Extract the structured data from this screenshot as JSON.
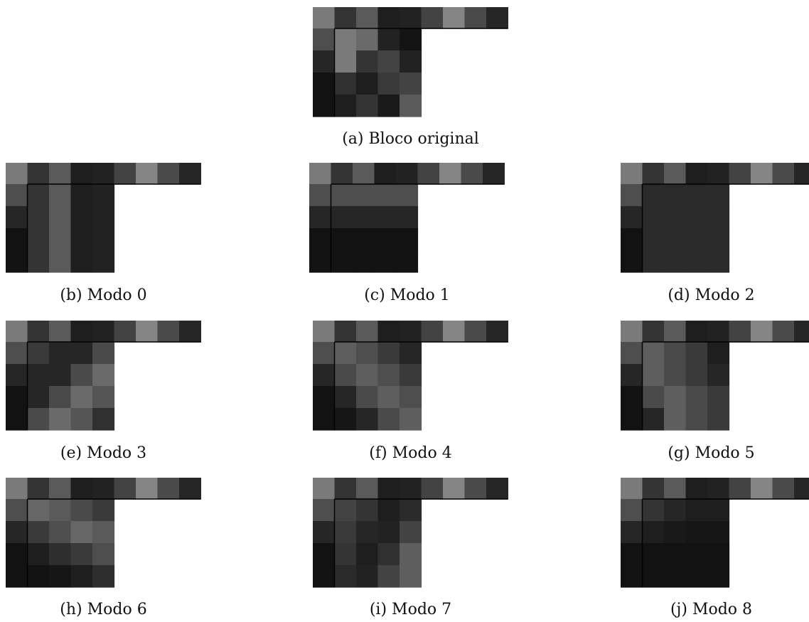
{
  "border_color": "#000000",
  "panels": [
    {
      "id": "a",
      "label": "(a)",
      "caption": "Bloco original",
      "top": [
        "#7a7a7a",
        "#343434",
        "#5a5a5a",
        "#1e1e1e",
        "#222222",
        "#434343",
        "#858585",
        "#4a4a4a",
        "#262626"
      ],
      "left": [
        "#4e4e4e",
        "#262626",
        "#121212",
        "#121212"
      ],
      "block": [
        [
          "#7a7a7a",
          "#6a6a6a",
          "#222222",
          "#141414"
        ],
        [
          "#7a7a7a",
          "#343434",
          "#434343",
          "#222222"
        ],
        [
          "#303030",
          "#1e1e1e",
          "#3a3a3a",
          "#434343"
        ],
        [
          "#1e1e1e",
          "#343434",
          "#1a1a1a",
          "#5a5a5a"
        ]
      ]
    },
    {
      "id": "b",
      "label": "(b)",
      "caption": "Modo 0",
      "top": [
        "#7a7a7a",
        "#343434",
        "#5a5a5a",
        "#1e1e1e",
        "#222222",
        "#434343",
        "#858585",
        "#4a4a4a",
        "#262626"
      ],
      "left": [
        "#4e4e4e",
        "#262626",
        "#121212",
        "#121212"
      ],
      "block": [
        [
          "#343434",
          "#5a5a5a",
          "#1e1e1e",
          "#222222"
        ],
        [
          "#343434",
          "#5a5a5a",
          "#1e1e1e",
          "#222222"
        ],
        [
          "#343434",
          "#5a5a5a",
          "#1e1e1e",
          "#222222"
        ],
        [
          "#343434",
          "#5a5a5a",
          "#1e1e1e",
          "#222222"
        ]
      ]
    },
    {
      "id": "c",
      "label": "(c)",
      "caption": "Modo 1",
      "top": [
        "#7a7a7a",
        "#343434",
        "#5a5a5a",
        "#1e1e1e",
        "#222222",
        "#434343",
        "#858585",
        "#4a4a4a",
        "#262626"
      ],
      "left": [
        "#4e4e4e",
        "#262626",
        "#121212",
        "#121212"
      ],
      "block": [
        [
          "#4e4e4e",
          "#4e4e4e",
          "#4e4e4e",
          "#4e4e4e"
        ],
        [
          "#262626",
          "#262626",
          "#262626",
          "#262626"
        ],
        [
          "#121212",
          "#121212",
          "#121212",
          "#121212"
        ],
        [
          "#121212",
          "#121212",
          "#121212",
          "#121212"
        ]
      ]
    },
    {
      "id": "d",
      "label": "(d)",
      "caption": "Modo 2",
      "top": [
        "#7a7a7a",
        "#343434",
        "#5a5a5a",
        "#1e1e1e",
        "#222222",
        "#434343",
        "#858585",
        "#4a4a4a",
        "#262626"
      ],
      "left": [
        "#4e4e4e",
        "#262626",
        "#121212",
        "#121212"
      ],
      "block": [
        [
          "#2a2a2a",
          "#2a2a2a",
          "#2a2a2a",
          "#2a2a2a"
        ],
        [
          "#2a2a2a",
          "#2a2a2a",
          "#2a2a2a",
          "#2a2a2a"
        ],
        [
          "#2a2a2a",
          "#2a2a2a",
          "#2a2a2a",
          "#2a2a2a"
        ],
        [
          "#2a2a2a",
          "#2a2a2a",
          "#2a2a2a",
          "#2a2a2a"
        ]
      ]
    },
    {
      "id": "e",
      "label": "(e)",
      "caption": "Modo 3",
      "top": [
        "#7a7a7a",
        "#343434",
        "#5a5a5a",
        "#1e1e1e",
        "#222222",
        "#434343",
        "#858585",
        "#4a4a4a",
        "#262626"
      ],
      "left": [
        "#4e4e4e",
        "#262626",
        "#121212",
        "#121212"
      ],
      "block": [
        [
          "#3a3a3a",
          "#262626",
          "#262626",
          "#4a4a4a"
        ],
        [
          "#262626",
          "#262626",
          "#4a4a4a",
          "#6a6a6a"
        ],
        [
          "#262626",
          "#4a4a4a",
          "#6a6a6a",
          "#555555"
        ],
        [
          "#4a4a4a",
          "#6a6a6a",
          "#555555",
          "#303030"
        ]
      ]
    },
    {
      "id": "f",
      "label": "(f)",
      "caption": "Modo 4",
      "top": [
        "#7a7a7a",
        "#343434",
        "#5a5a5a",
        "#1e1e1e",
        "#222222",
        "#434343",
        "#858585",
        "#4a4a4a",
        "#262626"
      ],
      "left": [
        "#4e4e4e",
        "#262626",
        "#121212",
        "#121212"
      ],
      "block": [
        [
          "#5e5e5e",
          "#4e4e4e",
          "#3a3a3a",
          "#262626"
        ],
        [
          "#4a4a4a",
          "#5e5e5e",
          "#4e4e4e",
          "#3a3a3a"
        ],
        [
          "#262626",
          "#4a4a4a",
          "#5e5e5e",
          "#4e4e4e"
        ],
        [
          "#161616",
          "#262626",
          "#4a4a4a",
          "#5e5e5e"
        ]
      ]
    },
    {
      "id": "g",
      "label": "(g)",
      "caption": "Modo 5",
      "top": [
        "#7a7a7a",
        "#343434",
        "#5a5a5a",
        "#1e1e1e",
        "#222222",
        "#434343",
        "#858585",
        "#4a4a4a",
        "#262626"
      ],
      "left": [
        "#4e4e4e",
        "#262626",
        "#121212",
        "#121212"
      ],
      "block": [
        [
          "#5e5e5e",
          "#4a4a4a",
          "#3a3a3a",
          "#1e1e1e"
        ],
        [
          "#5e5e5e",
          "#4a4a4a",
          "#3a3a3a",
          "#262626"
        ],
        [
          "#4a4a4a",
          "#5e5e5e",
          "#4a4a4a",
          "#3a3a3a"
        ],
        [
          "#262626",
          "#5e5e5e",
          "#4a4a4a",
          "#3a3a3a"
        ]
      ]
    },
    {
      "id": "h",
      "label": "(h)",
      "caption": "Modo 6",
      "top": [
        "#7a7a7a",
        "#343434",
        "#5a5a5a",
        "#1e1e1e",
        "#222222",
        "#434343",
        "#858585",
        "#4a4a4a",
        "#262626"
      ],
      "left": [
        "#4e4e4e",
        "#262626",
        "#121212",
        "#121212"
      ],
      "block": [
        [
          "#666666",
          "#5a5a5a",
          "#4a4a4a",
          "#3a3a3a"
        ],
        [
          "#3a3a3a",
          "#4e4e4e",
          "#666666",
          "#5a5a5a"
        ],
        [
          "#1e1e1e",
          "#2e2e2e",
          "#3a3a3a",
          "#4e4e4e"
        ],
        [
          "#121212",
          "#161616",
          "#1e1e1e",
          "#2e2e2e"
        ]
      ]
    },
    {
      "id": "i",
      "label": "(i)",
      "caption": "Modo 7",
      "top": [
        "#7a7a7a",
        "#343434",
        "#5a5a5a",
        "#1e1e1e",
        "#222222",
        "#434343",
        "#858585",
        "#4a4a4a",
        "#262626"
      ],
      "left": [
        "#4e4e4e",
        "#262626",
        "#121212",
        "#121212"
      ],
      "block": [
        [
          "#434343",
          "#343434",
          "#1e1e1e",
          "#2a2a2a"
        ],
        [
          "#3a3a3a",
          "#262626",
          "#222222",
          "#434343"
        ],
        [
          "#343434",
          "#1e1e1e",
          "#303030",
          "#5e5e5e"
        ],
        [
          "#2a2a2a",
          "#222222",
          "#434343",
          "#5e5e5e"
        ]
      ]
    },
    {
      "id": "j",
      "label": "(j)",
      "caption": "Modo 8",
      "top": [
        "#7a7a7a",
        "#343434",
        "#5a5a5a",
        "#1e1e1e",
        "#222222",
        "#434343",
        "#858585",
        "#4a4a4a",
        "#262626"
      ],
      "left": [
        "#4e4e4e",
        "#262626",
        "#121212",
        "#121212"
      ],
      "block": [
        [
          "#343434",
          "#262626",
          "#1e1e1e",
          "#1e1e1e"
        ],
        [
          "#1e1e1e",
          "#191919",
          "#161616",
          "#161616"
        ],
        [
          "#121212",
          "#121212",
          "#121212",
          "#121212"
        ],
        [
          "#121212",
          "#121212",
          "#121212",
          "#121212"
        ]
      ]
    }
  ]
}
